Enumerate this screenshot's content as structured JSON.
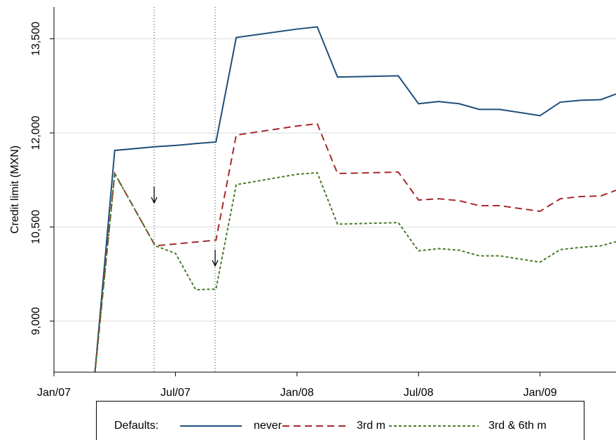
{
  "chart_data": {
    "type": "line",
    "y_label": "Credit limit (MXN)",
    "legend_title": "Defaults:",
    "x": [
      2,
      3,
      5,
      6,
      7,
      8,
      9,
      12,
      13,
      14,
      17,
      18,
      19,
      20,
      21,
      22,
      24,
      25,
      26,
      27,
      27.75
    ],
    "series": [
      {
        "name": "never",
        "color": "#1f4e79",
        "dash": "solid",
        "values": [
          8100,
          11720,
          11780,
          11800,
          11830,
          11855,
          13520,
          13655,
          13690,
          12890,
          12910,
          12465,
          12500,
          12465,
          12375,
          12375,
          12275,
          12490,
          12520,
          12530,
          12620
        ]
      },
      {
        "name": "3rd m",
        "color": "#a52a2a",
        "dash": "dashed",
        "values": [
          8100,
          11353,
          10200,
          10230,
          10260,
          10290,
          11965,
          12110,
          12145,
          11353,
          11375,
          10930,
          10950,
          10920,
          10840,
          10840,
          10750,
          10950,
          10985,
          10995,
          11085
        ]
      },
      {
        "name": "3rd & 6th m",
        "color": "#4a7a2a",
        "dash": "dotted",
        "values": [
          8100,
          11353,
          10200,
          10080,
          9500,
          9510,
          11175,
          11340,
          11365,
          10545,
          10570,
          10120,
          10155,
          10130,
          10040,
          10040,
          9940,
          10140,
          10175,
          10200,
          10265
        ]
      }
    ],
    "xlim": [
      0,
      27.75
    ],
    "xticks": [
      {
        "value": 0,
        "label": "Jan/07"
      },
      {
        "value": 6,
        "label": "Jul/07"
      },
      {
        "value": 12,
        "label": "Jan/08"
      },
      {
        "value": 18,
        "label": "Jul/08"
      },
      {
        "value": 24,
        "label": "Jan/09"
      }
    ],
    "ylim": [
      8186,
      14007
    ],
    "yticks": [
      {
        "value": 9000,
        "label": "9,000"
      },
      {
        "value": 10500,
        "label": "10,500"
      },
      {
        "value": 12000,
        "label": "12,000"
      },
      {
        "value": 13500,
        "label": "13,500"
      }
    ],
    "grid": true,
    "legend": "bottom"
  }
}
